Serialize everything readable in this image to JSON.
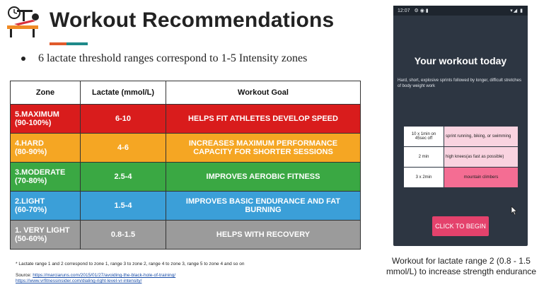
{
  "slide": {
    "title": "Workout Recommendations",
    "bullet": "6 lactate threshold ranges correspond to 1-5 Intensity zones"
  },
  "table": {
    "headers": [
      "Zone",
      "Lactate (mmol/L)",
      "Workout Goal"
    ],
    "rows": [
      {
        "zone_l1": "5.MAXIMUM",
        "zone_l2": "(90-100%)",
        "lactate": "6-10",
        "goal_l1": "HELPS FIT ATHLETES DEVELOP SPEED",
        "goal_l2": "",
        "color": "#d91c1c"
      },
      {
        "zone_l1": "4.HARD",
        "zone_l2": "(80-90%)",
        "lactate": "4-6",
        "goal_l1": "INCREASES MAXIMUM PERFORMANCE",
        "goal_l2": "CAPACITY FOR SHORTER SESSIONS",
        "color": "#f5a623"
      },
      {
        "zone_l1": "3.MODERATE",
        "zone_l2": "(70-80%)",
        "lactate": "2.5-4",
        "goal_l1": "IMPROVES AEROBIC FITNESS",
        "goal_l2": "",
        "color": "#3aa843"
      },
      {
        "zone_l1": "2.LIGHT",
        "zone_l2": "(60-70%)",
        "lactate": "1.5-4",
        "goal_l1": "IMPROVES BASIC ENDURANCE AND FAT",
        "goal_l2": "BURNING",
        "color": "#3b9fd8"
      },
      {
        "zone_l1": "1. VERY LIGHT",
        "zone_l2": "(50-60%)",
        "lactate": "0.8-1.5",
        "goal_l1": "HELPS WITH RECOVERY",
        "goal_l2": "",
        "color": "#9b9b9b"
      }
    ]
  },
  "footnote": "* Lactate range 1 and 2 correspond to zone 1, range 3 to zone 2, range 4 to zone 3, range 5 to zone 4 and so on",
  "source": {
    "label": "Source:",
    "link1": "https://marciaruns.com/2015/01/27/avoiding-the-black-hole-of-training/",
    "link2": "https://www.vrfitnessinsider.com/dialing-right-level-vr-intensity/"
  },
  "phone": {
    "status_time": "12:07",
    "title": "Your workout today",
    "description": "Hard, short, explosive sprints followed by longer, difficult stretches of body weight work",
    "workouts": [
      {
        "duration_l1": "10 x 1min on",
        "duration_l2": "45sec off",
        "activity": "sprint running, biking, or swimming"
      },
      {
        "duration_l1": "2 min",
        "duration_l2": "",
        "activity": "high knees(as fast as possible)"
      },
      {
        "duration_l1": "3 x 2min",
        "duration_l2": "",
        "activity": "mountain climbers"
      }
    ],
    "button_label": "CLICK TO BEGIN"
  },
  "caption": {
    "line1": "Workout for lactate range 2 (0.8 - 1.5",
    "line2": "mmol/L) to increase strength endurance"
  },
  "colors": {
    "accent_orange": "#e05a2b",
    "accent_teal": "#1f8a8a",
    "phone_bg": "#2d3642",
    "button": "#e4426c"
  },
  "icons": [
    "workout-person-icon",
    "clock-icon",
    "mouse-cursor-icon"
  ]
}
